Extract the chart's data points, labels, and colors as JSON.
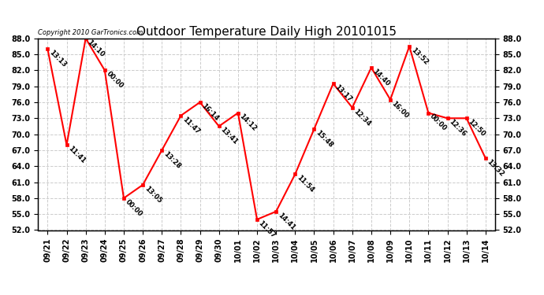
{
  "title": "Outdoor Temperature Daily High 20101015",
  "copyright": "Copyright 2010 GarTronics.com",
  "x_labels": [
    "09/21",
    "09/22",
    "09/23",
    "09/24",
    "09/25",
    "09/26",
    "09/27",
    "09/28",
    "09/29",
    "09/30",
    "10/01",
    "10/02",
    "10/03",
    "10/04",
    "10/05",
    "10/06",
    "10/07",
    "10/08",
    "10/09",
    "10/10",
    "10/11",
    "10/12",
    "10/13",
    "10/14"
  ],
  "y_values": [
    86.0,
    68.0,
    88.0,
    82.0,
    58.0,
    60.5,
    67.0,
    73.5,
    76.0,
    71.5,
    74.0,
    54.0,
    55.5,
    62.5,
    71.0,
    79.5,
    75.0,
    82.5,
    76.5,
    86.5,
    74.0,
    73.0,
    73.0,
    65.5
  ],
  "time_labels": [
    "13:13",
    "11:41",
    "14:10",
    "00:00",
    "00:00",
    "13:05",
    "13:28",
    "11:47",
    "16:14",
    "13:41",
    "14:12",
    "11:57",
    "14:41",
    "11:54",
    "15:48",
    "13:17",
    "12:34",
    "14:40",
    "16:00",
    "13:52",
    "00:00",
    "12:36",
    "12:50",
    "13:32"
  ],
  "ylim": [
    52.0,
    88.0
  ],
  "yticks": [
    52.0,
    55.0,
    58.0,
    61.0,
    64.0,
    67.0,
    70.0,
    73.0,
    76.0,
    79.0,
    82.0,
    85.0,
    88.0
  ],
  "line_color": "#ff0000",
  "marker_color": "#ff0000",
  "bg_color": "#ffffff",
  "grid_color": "#cccccc",
  "title_fontsize": 11,
  "tick_fontsize": 7,
  "annot_fontsize": 6
}
